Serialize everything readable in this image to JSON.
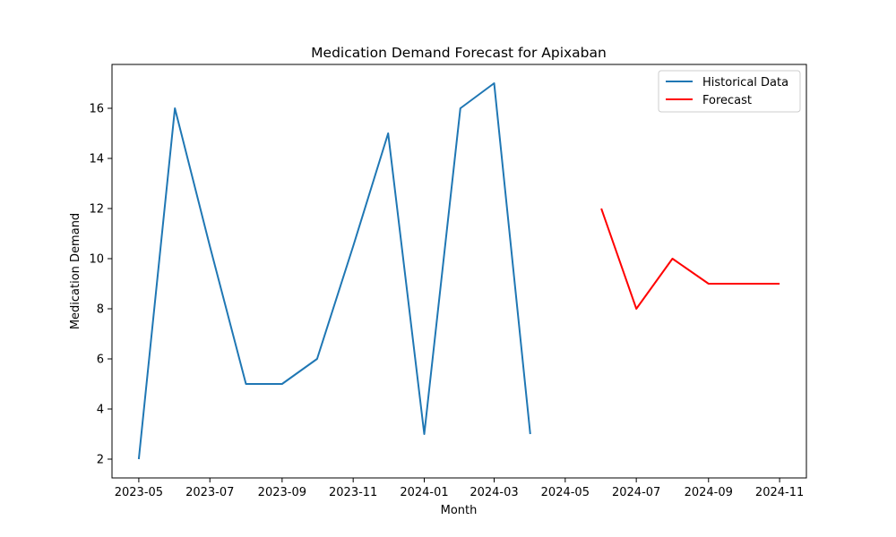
{
  "chart_data": {
    "type": "line",
    "title": "Medication Demand Forecast for Apixaban",
    "xlabel": "Month",
    "ylabel": "Medication Demand",
    "x_axis_type": "date",
    "xlim": [
      "2023-04-08",
      "2024-11-24"
    ],
    "ylim": [
      1.25,
      17.75
    ],
    "x_ticks": [
      "2023-05",
      "2023-07",
      "2023-09",
      "2023-11",
      "2024-01",
      "2024-03",
      "2024-05",
      "2024-07",
      "2024-09",
      "2024-11"
    ],
    "y_ticks": [
      2,
      4,
      6,
      8,
      10,
      12,
      14,
      16
    ],
    "grid": false,
    "legend_position": "top-right",
    "series": [
      {
        "name": "Historical Data",
        "color": "#1f77b4",
        "x": [
          "2023-05-01",
          "2023-06-01",
          "2023-07-01",
          "2023-08-01",
          "2023-09-01",
          "2023-10-01",
          "2023-11-01",
          "2023-12-01",
          "2024-01-01",
          "2024-02-01",
          "2024-03-01",
          "2024-04-01"
        ],
        "values": [
          2,
          16,
          10.5,
          5,
          5,
          6,
          10.5,
          15,
          3,
          16,
          17,
          3
        ]
      },
      {
        "name": "Forecast",
        "color": "#ff0000",
        "x": [
          "2024-06-01",
          "2024-07-01",
          "2024-08-01",
          "2024-09-01",
          "2024-10-01",
          "2024-11-01"
        ],
        "values": [
          12,
          8,
          10,
          9,
          9,
          9
        ]
      }
    ]
  }
}
